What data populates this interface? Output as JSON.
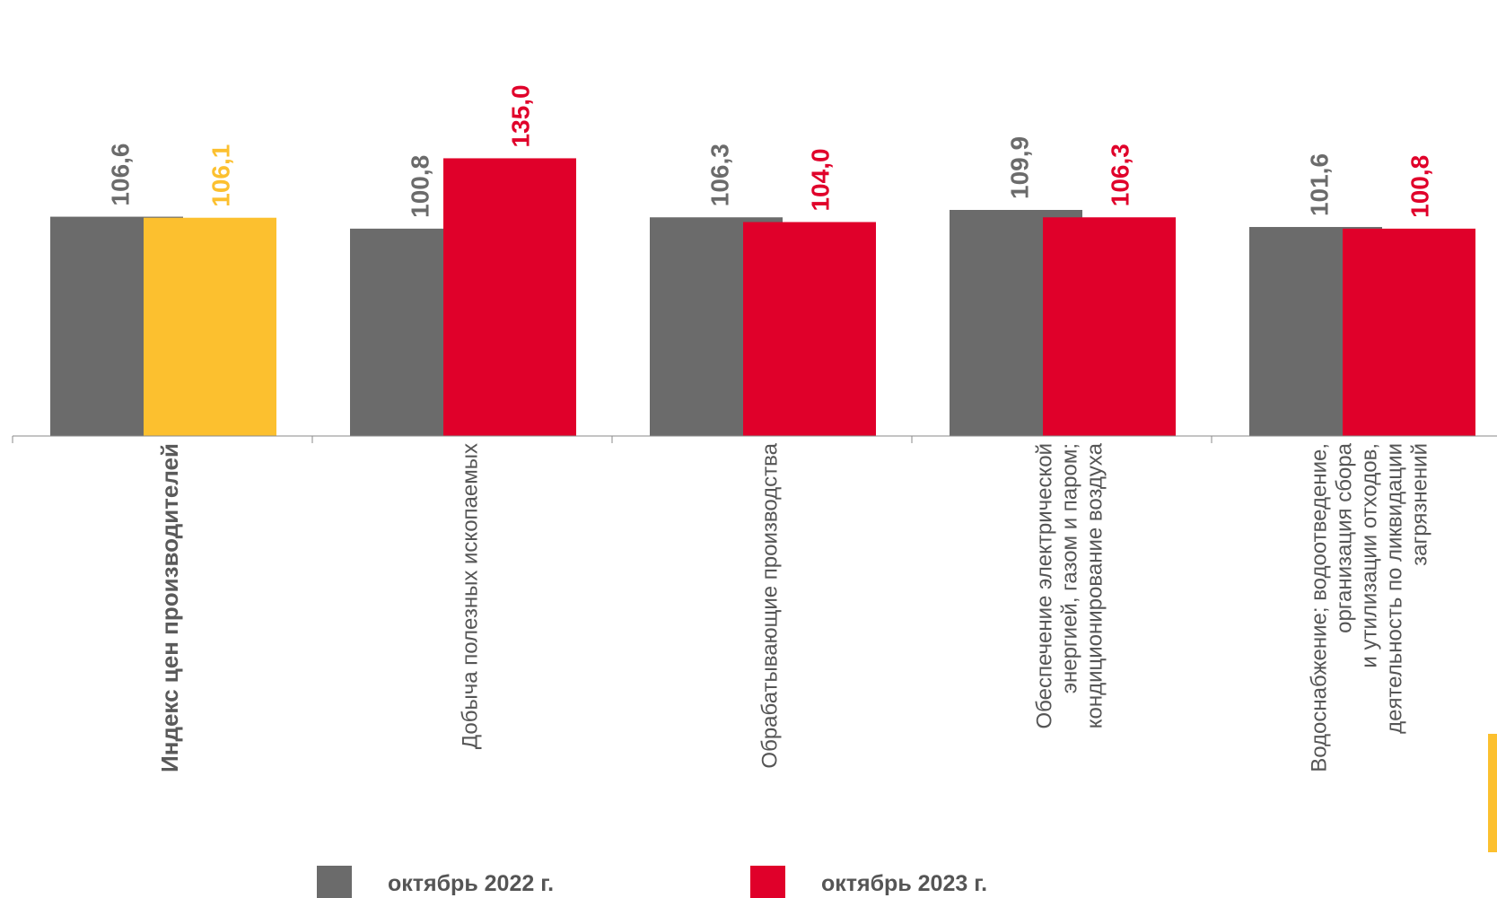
{
  "chart_data": {
    "type": "bar",
    "categories": [
      [
        "Индекс цен производителей"
      ],
      [
        "Добыча  полезных ископаемых"
      ],
      [
        "Обрабатывающие  производства"
      ],
      [
        "Обеспечение электрической",
        "энергией, газом и паром;",
        "кондиционирование воздуха"
      ],
      [
        "Водоснабжение;  водоотведение,",
        "организация  сбора",
        "и утилизации отходов,",
        "деятельность по ликвидации",
        "загрязнений"
      ]
    ],
    "series": [
      {
        "name": "октябрь 2022 г.",
        "values": [
          106.6,
          100.8,
          106.3,
          109.9,
          101.6
        ],
        "labels": [
          "106,6",
          "100,8",
          "106,3",
          "109,9",
          "101,6"
        ]
      },
      {
        "name": "октябрь 2023 г.",
        "values": [
          106.1,
          135.0,
          104.0,
          106.3,
          100.8
        ],
        "labels": [
          "106,1",
          "135,0",
          "104,0",
          "106,3",
          "100,8"
        ]
      }
    ],
    "ylim": [
      0,
      145
    ],
    "grid": false,
    "legend_position": "bottom",
    "colors": {
      "series_2022": "#6b6b6b",
      "series_2023": "#e0002a",
      "highlight": "#fcc02f"
    },
    "highlighted_category_index": 0,
    "bold_category_index": 0
  }
}
